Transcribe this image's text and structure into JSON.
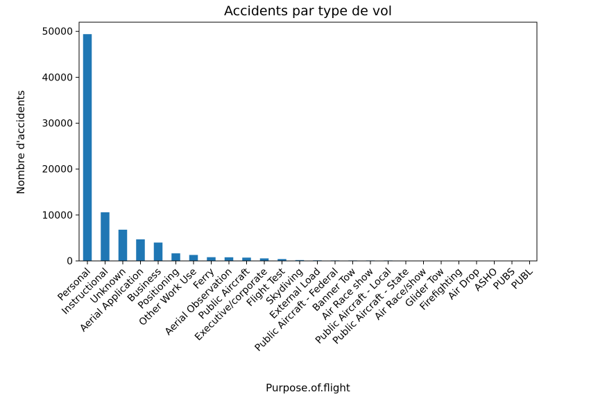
{
  "chart_data": {
    "type": "bar",
    "title": "Accidents par type de vol",
    "xlabel": "Purpose.of.flight",
    "ylabel": "Nombre d'accidents",
    "ylim": [
      0,
      52000
    ],
    "yticks": [
      0,
      10000,
      20000,
      30000,
      40000,
      50000
    ],
    "grid": false,
    "bar_color": "#1f77b4",
    "categories": [
      "Personal",
      "Instructional",
      "Unknown",
      "Aerial Application",
      "Business",
      "Positioning",
      "Other Work Use",
      "Ferry",
      "Aerial Observation",
      "Public Aircraft",
      "Executive/corporate",
      "Flight Test",
      "Skydiving",
      "External Load",
      "Public Aircraft - Federal",
      "Banner Tow",
      "Air Race show",
      "Public Aircraft - Local",
      "Public Aircraft - State",
      "Air Race/show",
      "Glider Tow",
      "Firefighting",
      "Air Drop",
      "ASHO",
      "PUBS",
      "PUBL"
    ],
    "values": [
      49400,
      10600,
      6800,
      4700,
      4000,
      1650,
      1300,
      810,
      790,
      720,
      550,
      405,
      182,
      123,
      105,
      101,
      99,
      96,
      64,
      59,
      53,
      40,
      11,
      6,
      4,
      1
    ]
  }
}
